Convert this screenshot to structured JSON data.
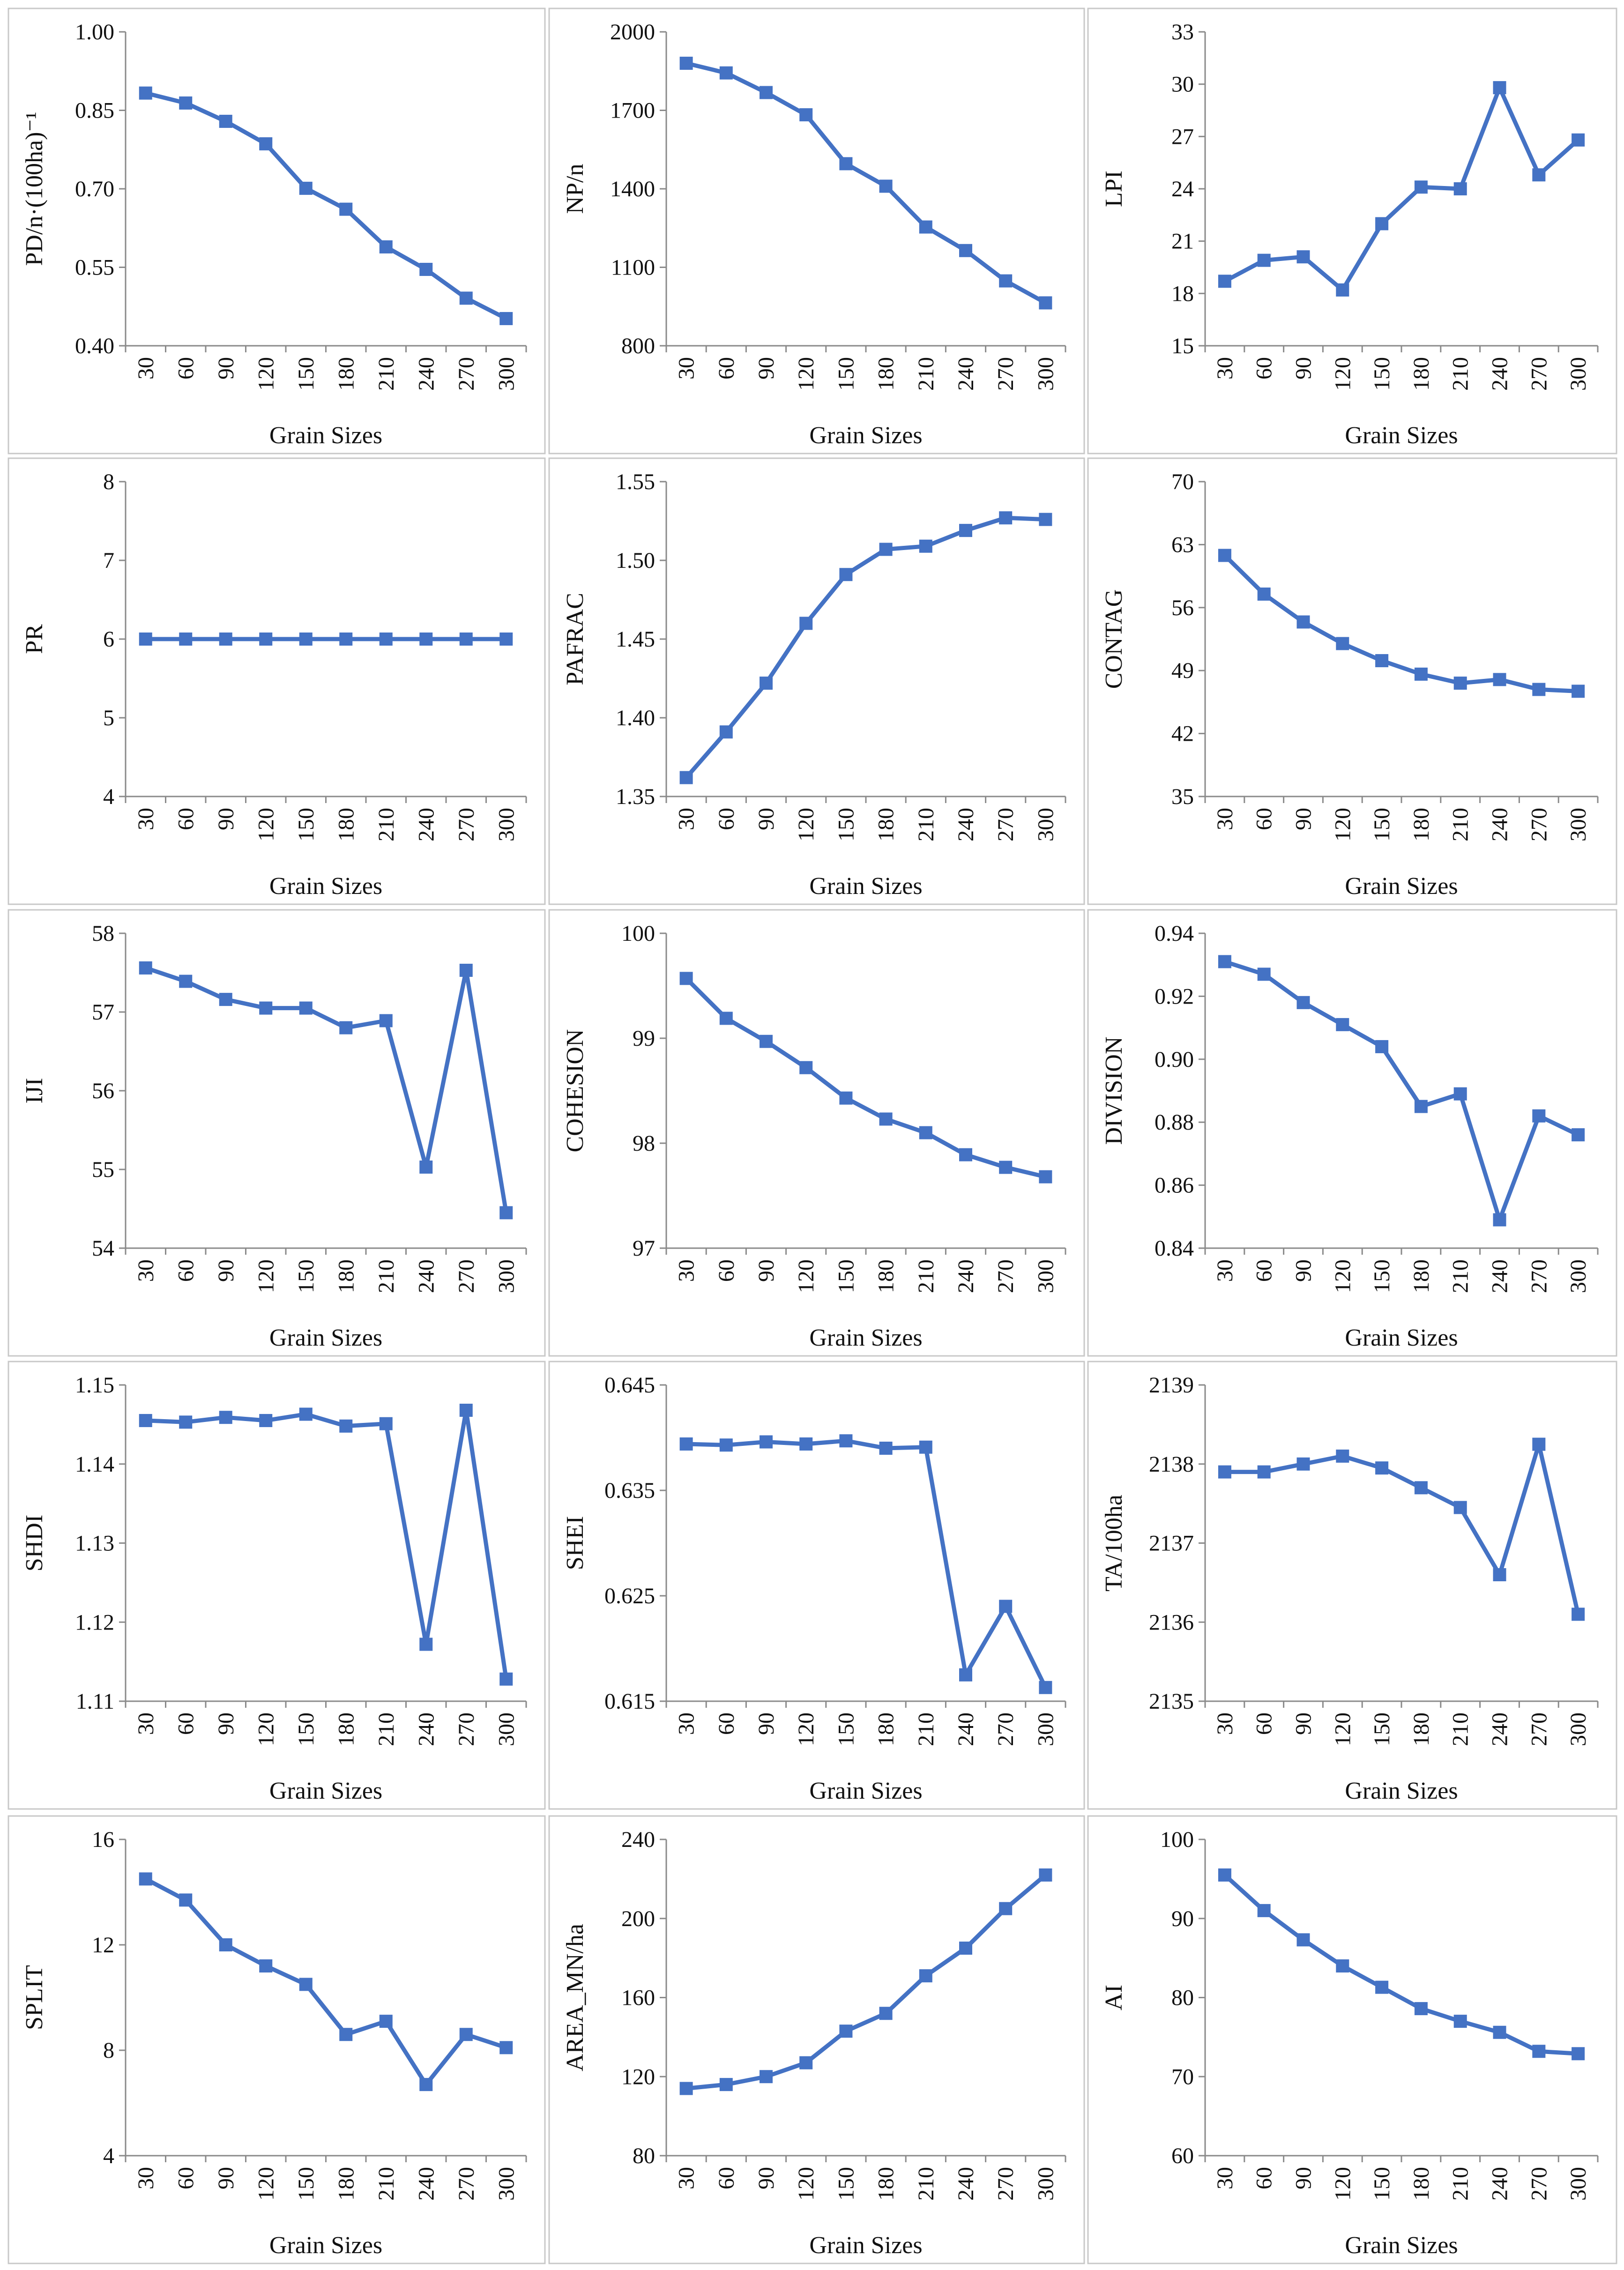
{
  "style": {
    "series_color": "#4472C4",
    "marker": "square"
  },
  "chart_data": [
    {
      "type": "line",
      "ylabel": "PD/n·(100ha)⁻¹",
      "xlabel": "Grain Sizes",
      "x": [
        "30",
        "60",
        "90",
        "120",
        "150",
        "180",
        "210",
        "240",
        "270",
        "300"
      ],
      "ylim": [
        0.4,
        1.0
      ],
      "yticks": [
        "0.40",
        "0.55",
        "0.70",
        "0.85",
        "1.00"
      ],
      "values": [
        0.883,
        0.864,
        0.829,
        0.786,
        0.701,
        0.661,
        0.589,
        0.546,
        0.491,
        0.452
      ]
    },
    {
      "type": "line",
      "ylabel": "NP/n",
      "xlabel": "Grain Sizes",
      "x": [
        "30",
        "60",
        "90",
        "120",
        "150",
        "180",
        "210",
        "240",
        "270",
        "300"
      ],
      "ylim": [
        800,
        2000
      ],
      "yticks": [
        "800",
        "1100",
        "1400",
        "1700",
        "2000"
      ],
      "values": [
        1880,
        1843,
        1768,
        1683,
        1496,
        1410,
        1254,
        1164,
        1048,
        964
      ]
    },
    {
      "type": "line",
      "ylabel": "LPI",
      "xlabel": "Grain Sizes",
      "x": [
        "30",
        "60",
        "90",
        "120",
        "150",
        "180",
        "210",
        "240",
        "270",
        "300"
      ],
      "ylim": [
        15,
        33
      ],
      "yticks": [
        "15",
        "18",
        "21",
        "24",
        "27",
        "30",
        "33"
      ],
      "values": [
        18.7,
        19.9,
        20.1,
        18.2,
        22.0,
        24.1,
        24.0,
        29.8,
        24.8,
        26.8
      ]
    },
    {
      "type": "line",
      "ylabel": "PR",
      "xlabel": "Grain Sizes",
      "x": [
        "30",
        "60",
        "90",
        "120",
        "150",
        "180",
        "210",
        "240",
        "270",
        "300"
      ],
      "ylim": [
        4,
        8
      ],
      "yticks": [
        "4",
        "5",
        "6",
        "7",
        "8"
      ],
      "values": [
        6,
        6,
        6,
        6,
        6,
        6,
        6,
        6,
        6,
        6
      ]
    },
    {
      "type": "line",
      "ylabel": "PAFRAC",
      "xlabel": "Grain Sizes",
      "x": [
        "30",
        "60",
        "90",
        "120",
        "150",
        "180",
        "210",
        "240",
        "270",
        "300"
      ],
      "ylim": [
        1.35,
        1.55
      ],
      "yticks": [
        "1.35",
        "1.40",
        "1.45",
        "1.50",
        "1.55"
      ],
      "values": [
        1.362,
        1.391,
        1.422,
        1.46,
        1.491,
        1.507,
        1.509,
        1.519,
        1.527,
        1.526
      ]
    },
    {
      "type": "line",
      "ylabel": "CONTAG",
      "xlabel": "Grain Sizes",
      "x": [
        "30",
        "60",
        "90",
        "120",
        "150",
        "180",
        "210",
        "240",
        "270",
        "300"
      ],
      "ylim": [
        35,
        70
      ],
      "yticks": [
        "35",
        "42",
        "49",
        "56",
        "63",
        "70"
      ],
      "values": [
        61.8,
        57.5,
        54.4,
        52.0,
        50.1,
        48.6,
        47.6,
        48.0,
        46.9,
        46.7
      ]
    },
    {
      "type": "line",
      "ylabel": "IJI",
      "xlabel": "Grain Sizes",
      "x": [
        "30",
        "60",
        "90",
        "120",
        "150",
        "180",
        "210",
        "240",
        "270",
        "300"
      ],
      "ylim": [
        54,
        58
      ],
      "yticks": [
        "54",
        "55",
        "56",
        "57",
        "58"
      ],
      "values": [
        57.56,
        57.39,
        57.16,
        57.05,
        57.05,
        56.8,
        56.89,
        55.03,
        57.53,
        54.45
      ]
    },
    {
      "type": "line",
      "ylabel": "COHESION",
      "xlabel": "Grain Sizes",
      "x": [
        "30",
        "60",
        "90",
        "120",
        "150",
        "180",
        "210",
        "240",
        "270",
        "300"
      ],
      "ylim": [
        97,
        100
      ],
      "yticks": [
        "97",
        "98",
        "99",
        "100"
      ],
      "values": [
        99.57,
        99.19,
        98.97,
        98.72,
        98.43,
        98.23,
        98.1,
        97.89,
        97.77,
        97.68
      ]
    },
    {
      "type": "line",
      "ylabel": "DIVISION",
      "xlabel": "Grain Sizes",
      "x": [
        "30",
        "60",
        "90",
        "120",
        "150",
        "180",
        "210",
        "240",
        "270",
        "300"
      ],
      "ylim": [
        0.84,
        0.94
      ],
      "yticks": [
        "0.84",
        "0.86",
        "0.88",
        "0.90",
        "0.92",
        "0.94"
      ],
      "values": [
        0.931,
        0.927,
        0.918,
        0.911,
        0.904,
        0.885,
        0.889,
        0.849,
        0.882,
        0.876
      ]
    },
    {
      "type": "line",
      "ylabel": "SHDI",
      "xlabel": "Grain Sizes",
      "x": [
        "30",
        "60",
        "90",
        "120",
        "150",
        "180",
        "210",
        "240",
        "270",
        "300"
      ],
      "ylim": [
        1.11,
        1.15
      ],
      "yticks": [
        "1.11",
        "1.12",
        "1.13",
        "1.14",
        "1.15"
      ],
      "values": [
        1.1455,
        1.1453,
        1.1459,
        1.1455,
        1.1463,
        1.1448,
        1.1451,
        1.1172,
        1.1468,
        1.1128
      ]
    },
    {
      "type": "line",
      "ylabel": "SHEI",
      "xlabel": "Grain Sizes",
      "x": [
        "30",
        "60",
        "90",
        "120",
        "150",
        "180",
        "210",
        "240",
        "270",
        "300"
      ],
      "ylim": [
        0.615,
        0.645
      ],
      "yticks": [
        "0.615",
        "0.625",
        "0.635",
        "0.645"
      ],
      "values": [
        0.6394,
        0.6393,
        0.6396,
        0.6394,
        0.6397,
        0.639,
        0.6391,
        0.6175,
        0.624,
        0.6163
      ]
    },
    {
      "type": "line",
      "ylabel": "TA/100ha",
      "xlabel": "Grain Sizes",
      "x": [
        "30",
        "60",
        "90",
        "120",
        "150",
        "180",
        "210",
        "240",
        "270",
        "300"
      ],
      "ylim": [
        2135,
        2139
      ],
      "yticks": [
        "2135",
        "2136",
        "2137",
        "2138",
        "2139"
      ],
      "values": [
        2137.9,
        2137.9,
        2138.0,
        2138.1,
        2137.95,
        2137.7,
        2137.45,
        2136.6,
        2138.25,
        2136.1
      ]
    },
    {
      "type": "line",
      "ylabel": "SPLIT",
      "xlabel": "Grain Sizes",
      "x": [
        "30",
        "60",
        "90",
        "120",
        "150",
        "180",
        "210",
        "240",
        "270",
        "300"
      ],
      "ylim": [
        4,
        16
      ],
      "yticks": [
        "4",
        "8",
        "12",
        "16"
      ],
      "values": [
        14.5,
        13.7,
        12.0,
        11.2,
        10.5,
        8.6,
        9.1,
        6.7,
        8.6,
        8.1
      ]
    },
    {
      "type": "line",
      "ylabel": "AREA_MN/ha",
      "xlabel": "Grain Sizes",
      "x": [
        "30",
        "60",
        "90",
        "120",
        "150",
        "180",
        "210",
        "240",
        "270",
        "300"
      ],
      "ylim": [
        80,
        240
      ],
      "yticks": [
        "80",
        "120",
        "160",
        "200",
        "240"
      ],
      "values": [
        114,
        116,
        120,
        127,
        143,
        152,
        171,
        185,
        205,
        222
      ]
    },
    {
      "type": "line",
      "ylabel": "AI",
      "xlabel": "Grain Sizes",
      "x": [
        "30",
        "60",
        "90",
        "120",
        "150",
        "180",
        "210",
        "240",
        "270",
        "300"
      ],
      "ylim": [
        60,
        100
      ],
      "yticks": [
        "60",
        "70",
        "80",
        "90",
        "100"
      ],
      "values": [
        95.5,
        91.0,
        87.3,
        84.0,
        81.3,
        78.6,
        77.0,
        75.6,
        73.2,
        72.9
      ]
    }
  ]
}
